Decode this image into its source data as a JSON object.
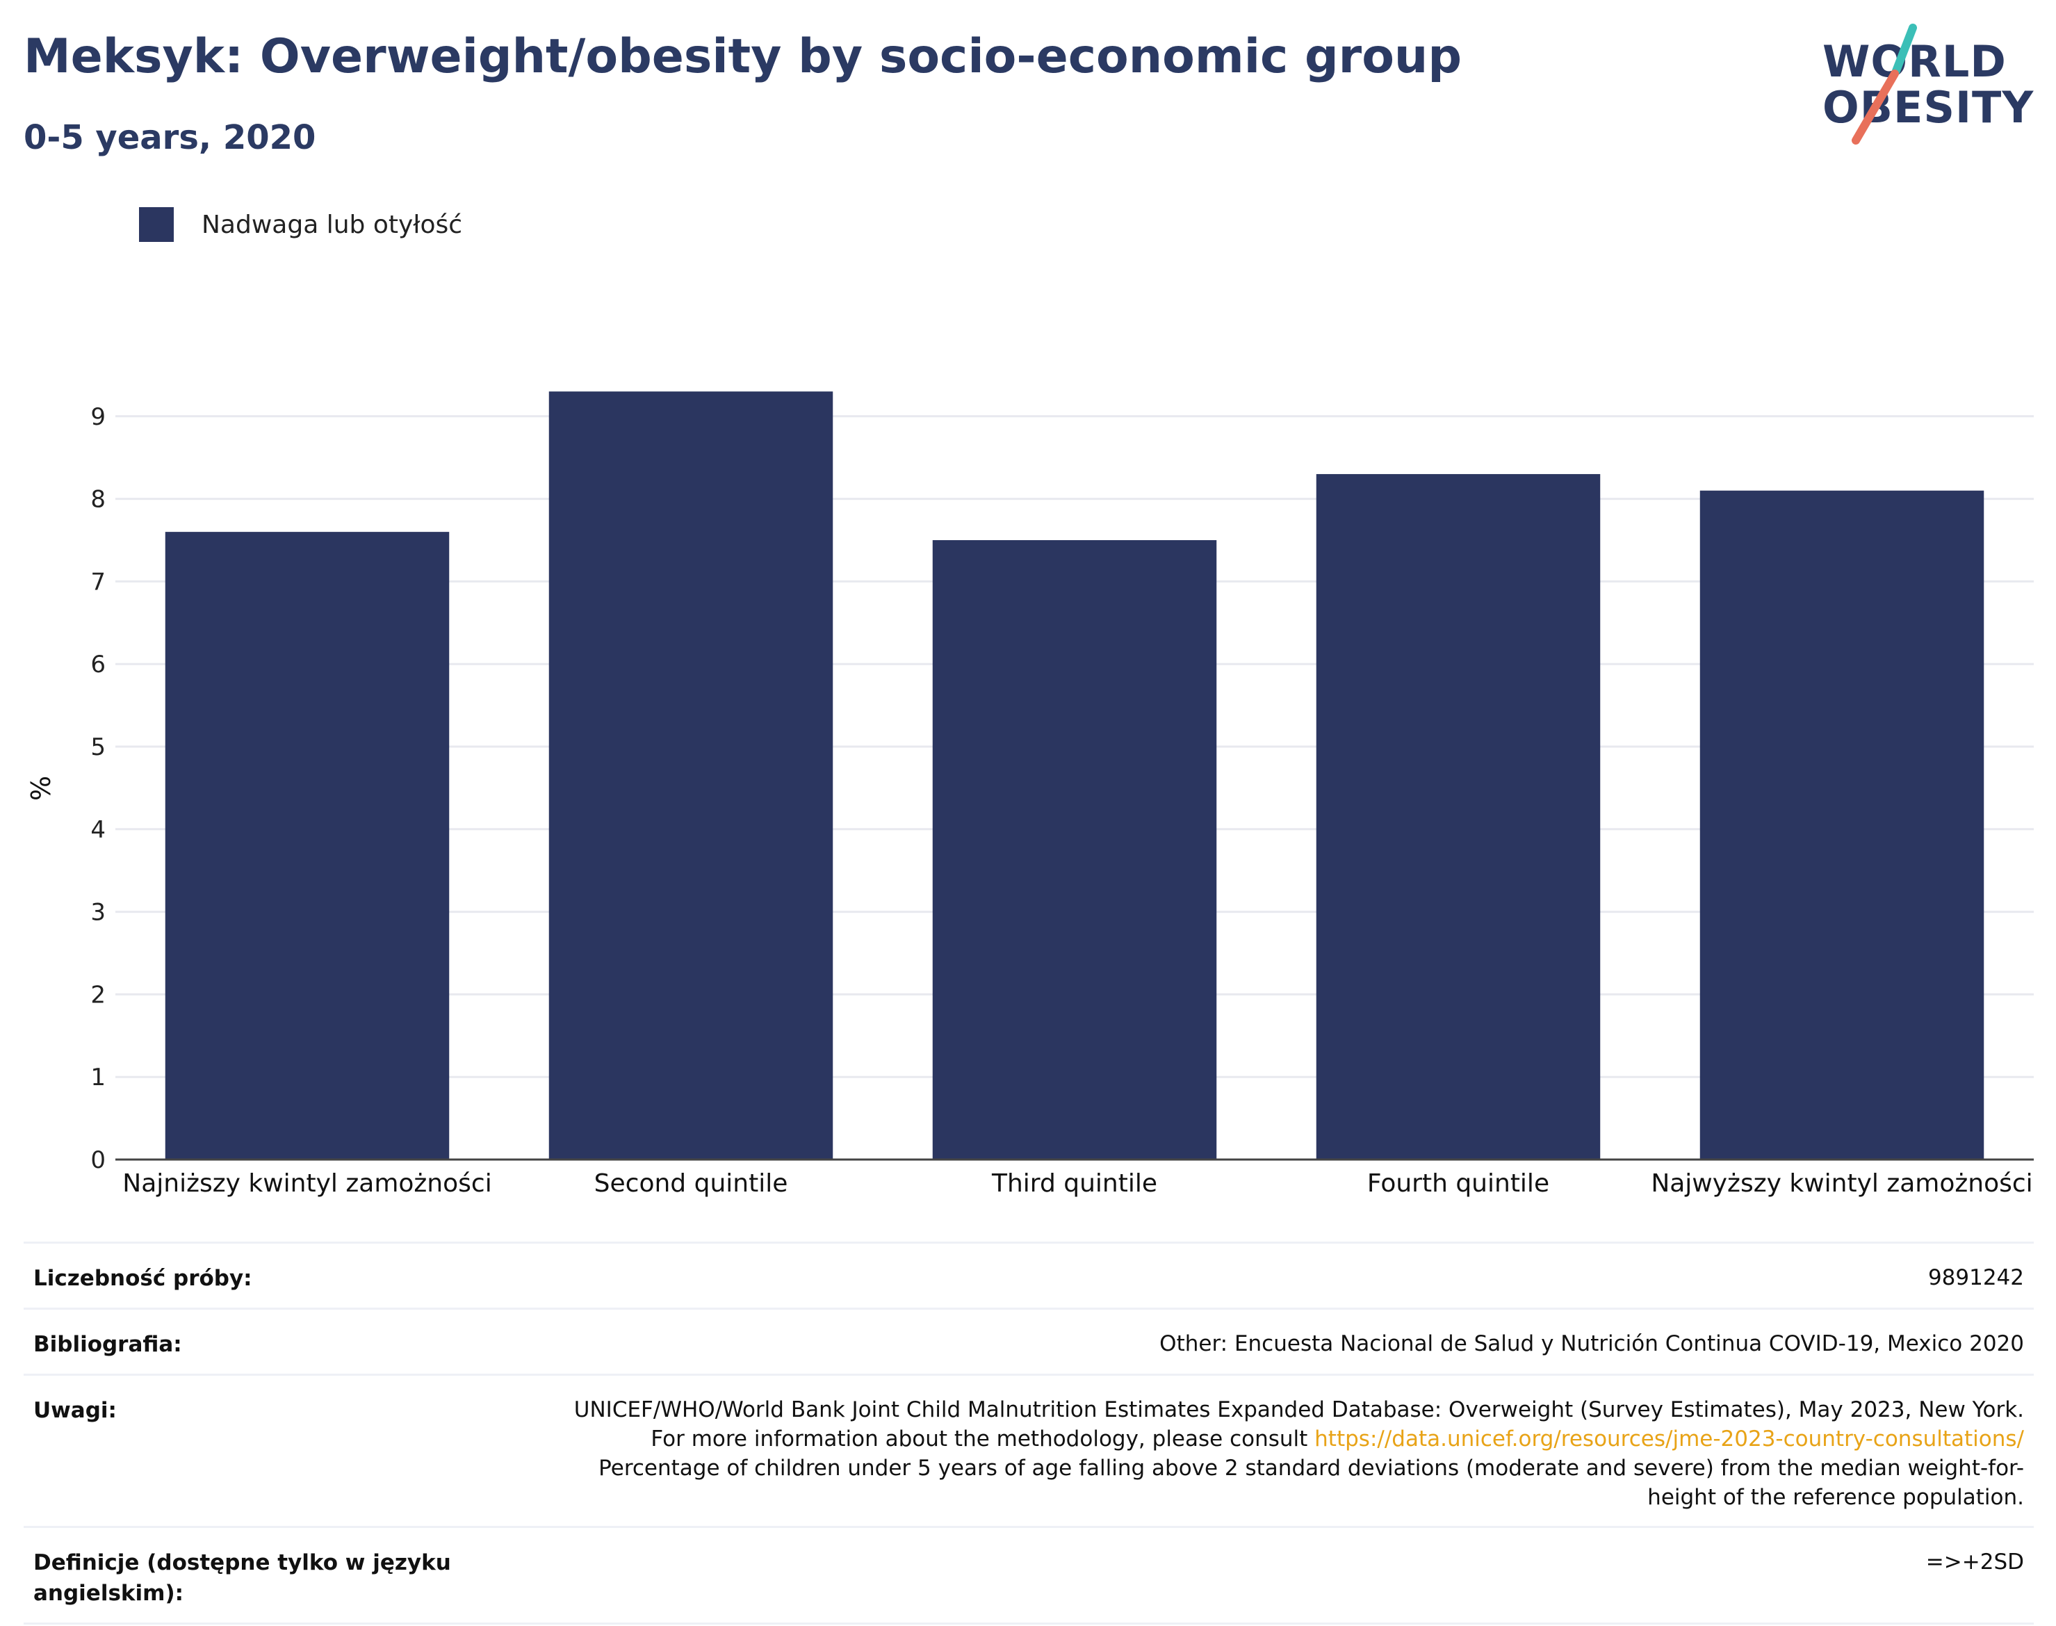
{
  "header": {
    "title": "Meksyk: Overweight/obesity by socio-economic group",
    "subtitle": "0-5 years, 2020"
  },
  "logo": {
    "line1": "WORLD",
    "line2": "OBESITY",
    "accent_teal": "#3bbfb7",
    "accent_coral": "#e8705a",
    "color": "#2b3a63"
  },
  "legend": {
    "label": "Nadwaga lub otyłość",
    "color": "#2b3660"
  },
  "chart_data": {
    "type": "bar",
    "categories": [
      "Najniższy kwintyl zamożności",
      "Second quintile",
      "Third quintile",
      "Fourth quintile",
      "Najwyższy kwintyl zamożności"
    ],
    "series": [
      {
        "name": "Nadwaga lub otyłość",
        "values": [
          7.6,
          9.3,
          7.5,
          8.3,
          8.1
        ]
      }
    ],
    "title": "Meksyk: Overweight/obesity by socio-economic group",
    "subtitle": "0-5 years, 2020",
    "xlabel": "",
    "ylabel": "%",
    "ylim": [
      0,
      10
    ],
    "yticks": [
      0,
      1,
      2,
      3,
      4,
      5,
      6,
      7,
      8,
      9
    ],
    "grid": true,
    "legend_position": "top-left",
    "bar_color": "#2b3660"
  },
  "info": {
    "sample_size": {
      "label": "Liczebność próby:",
      "value": "9891242"
    },
    "bibliography": {
      "label": "Bibliografia:",
      "value": "Other: Encuesta Nacional de Salud y Nutrición Continua COVID-19, Mexico 2020"
    },
    "notes": {
      "label": "Uwagi:",
      "text_before": "UNICEF/WHO/World Bank Joint Child Malnutrition Estimates Expanded Database: Overweight (Survey Estimates), May 2023, New York. For more information about the methodology, please consult ",
      "link": "https://data.unicef.org/resources/jme-2023-country-consultations/",
      "text_after": " Percentage of children under 5 years of age falling above 2 standard deviations (moderate and severe) from the median weight-for-height of the reference population."
    },
    "definitions": {
      "label": "Definicje (dostępne tylko w języku angielskim):",
      "value": "=>+2SD"
    }
  }
}
